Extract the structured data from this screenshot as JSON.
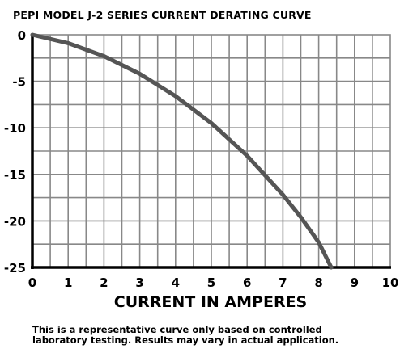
{
  "chart_data": {
    "type": "line",
    "title": "PEPI MODEL J-2 SERIES CURRENT DERATING CURVE",
    "xlabel": "CURRENT IN AMPERES",
    "ylabel": "",
    "xlim": [
      0,
      10
    ],
    "ylim": [
      -25,
      0
    ],
    "x_ticks": [
      "0",
      "1",
      "2",
      "3",
      "4",
      "5",
      "6",
      "7",
      "8",
      "9",
      "10"
    ],
    "y_ticks": [
      "0",
      "-5",
      "-10",
      "-15",
      "-20",
      "-25"
    ],
    "grid": true,
    "legend": "none",
    "series": [
      {
        "x": [
          0,
          1,
          2,
          3,
          4,
          5,
          6,
          7,
          7.5,
          8,
          8.35
        ],
        "y": [
          0,
          -0.9,
          -2.3,
          -4.2,
          -6.6,
          -9.5,
          -13.0,
          -17.2,
          -19.6,
          -22.3,
          -25
        ]
      }
    ]
  },
  "colors": {
    "curve": "#555555",
    "grid": "#888888",
    "axis": "#000000"
  },
  "disclaimer": {
    "line1": "This is a representative curve only based on controlled",
    "line2": "laboratory testing. Results may vary in actual application."
  }
}
